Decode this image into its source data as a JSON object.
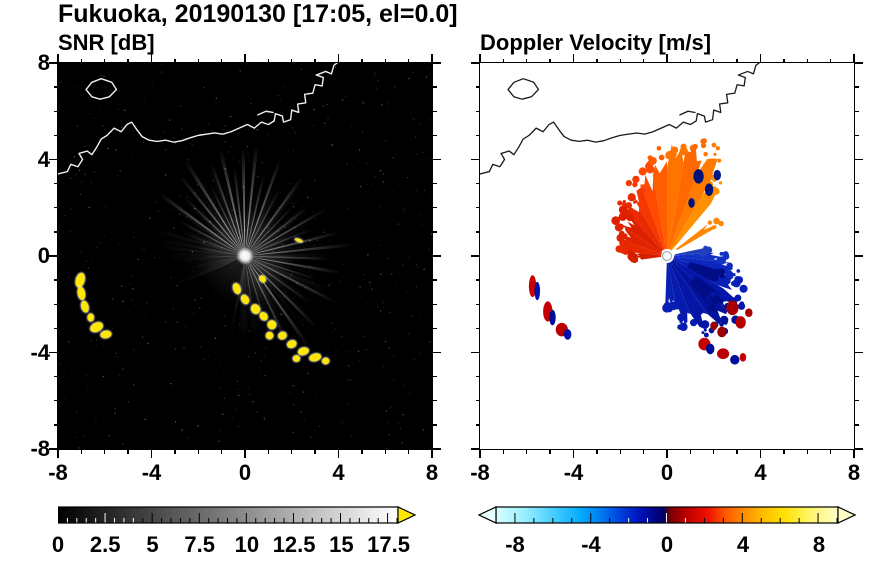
{
  "title": "Fukuoka, 20190130 [17:05, el=0.0]",
  "panels": [
    {
      "title": "SNR [dB]"
    },
    {
      "title": "Doppler Velocity [m/s]"
    }
  ],
  "axes": {
    "xlim": [
      -8,
      8
    ],
    "ylim": [
      -8,
      8
    ],
    "major_ticks": [
      -8,
      -4,
      0,
      4,
      8
    ],
    "major_labels": [
      "-8",
      "-4",
      "0",
      "4",
      "8"
    ],
    "minor_step": 1
  },
  "colorbars": [
    {
      "min": 0,
      "max": 18,
      "major_ticks": [
        0,
        2.5,
        5,
        7.5,
        10,
        12.5,
        15,
        17.5
      ],
      "major_labels": [
        "0",
        "2.5",
        "5",
        "7.5",
        "10",
        "12.5",
        "15",
        "17.5"
      ],
      "minor_step": 0.5,
      "colormap": "grayscale",
      "under_color": "#000000",
      "over_color": "#ffe800",
      "arrow_left": false,
      "arrow_right": true
    },
    {
      "min": -9,
      "max": 9,
      "major_ticks": [
        -8,
        -4,
        0,
        4,
        8
      ],
      "major_labels": [
        "-8",
        "-4",
        "0",
        "4",
        "8"
      ],
      "minor_step": 1,
      "colormap": "doppler",
      "stops": [
        [
          0,
          "#d8ffff"
        ],
        [
          0.08,
          "#99f0ff"
        ],
        [
          0.17,
          "#44ccff"
        ],
        [
          0.25,
          "#00aaff"
        ],
        [
          0.31,
          "#0077ee"
        ],
        [
          0.36,
          "#0044dd"
        ],
        [
          0.42,
          "#0011bb"
        ],
        [
          0.49,
          "#000066"
        ],
        [
          0.51,
          "#7a0000"
        ],
        [
          0.56,
          "#c00000"
        ],
        [
          0.62,
          "#ee1100"
        ],
        [
          0.67,
          "#ff5500"
        ],
        [
          0.72,
          "#ff8800"
        ],
        [
          0.78,
          "#ffbb00"
        ],
        [
          0.84,
          "#ffe000"
        ],
        [
          0.92,
          "#fff56b"
        ],
        [
          1,
          "#ffffc8"
        ]
      ],
      "under_color": "#e6ffff",
      "over_color": "#ffffc8",
      "arrow_left": true,
      "arrow_right": true
    }
  ],
  "coastline": [
    [
      [
        -8,
        3.4
      ],
      [
        -7.6,
        3.5
      ],
      [
        -7.45,
        3.8
      ],
      [
        -7.15,
        3.7
      ],
      [
        -6.95,
        4.0
      ],
      [
        -7.1,
        4.25
      ],
      [
        -6.75,
        4.35
      ],
      [
        -6.55,
        4.2
      ],
      [
        -6.35,
        4.5
      ],
      [
        -6.15,
        4.85
      ],
      [
        -5.9,
        5.0
      ],
      [
        -5.6,
        5.3
      ],
      [
        -5.3,
        5.15
      ],
      [
        -5.05,
        5.45
      ],
      [
        -4.85,
        5.55
      ],
      [
        -4.6,
        5.2
      ],
      [
        -4.4,
        4.95
      ],
      [
        -4.1,
        4.8
      ],
      [
        -3.75,
        4.75
      ],
      [
        -3.4,
        4.8
      ],
      [
        -3.05,
        4.72
      ],
      [
        -2.7,
        4.78
      ],
      [
        -2.35,
        4.9
      ],
      [
        -2.0,
        5.0
      ],
      [
        -1.65,
        5.05
      ],
      [
        -1.3,
        5.1
      ],
      [
        -0.95,
        5.05
      ],
      [
        -0.6,
        5.15
      ],
      [
        -0.25,
        5.3
      ],
      [
        0.1,
        5.45
      ],
      [
        0.4,
        5.3
      ],
      [
        0.7,
        5.55
      ],
      [
        1.0,
        5.45
      ],
      [
        1.25,
        5.6
      ],
      [
        1.3,
        5.9
      ],
      [
        1.6,
        5.8
      ],
      [
        1.65,
        5.55
      ],
      [
        1.95,
        5.65
      ],
      [
        2.0,
        6.05
      ],
      [
        2.3,
        5.95
      ],
      [
        2.25,
        6.3
      ],
      [
        2.6,
        6.35
      ],
      [
        2.55,
        6.7
      ],
      [
        2.9,
        6.75
      ],
      [
        3.0,
        7.1
      ],
      [
        3.3,
        7.05
      ],
      [
        3.35,
        7.4
      ],
      [
        3.05,
        7.5
      ],
      [
        3.45,
        7.65
      ],
      [
        3.7,
        7.55
      ],
      [
        3.8,
        7.9
      ],
      [
        4.0,
        8.05
      ]
    ],
    [
      [
        -6.55,
        6.6
      ],
      [
        -6.8,
        6.9
      ],
      [
        -6.55,
        7.2
      ],
      [
        -6.15,
        7.35
      ],
      [
        -5.7,
        7.2
      ],
      [
        -5.5,
        6.9
      ],
      [
        -5.8,
        6.6
      ],
      [
        -6.2,
        6.5
      ],
      [
        -6.55,
        6.6
      ]
    ],
    [
      [
        0.55,
        5.85
      ],
      [
        0.9,
        6.0
      ],
      [
        1.2,
        5.95
      ]
    ]
  ],
  "chart_data": [
    {
      "type": "heatmap",
      "title": "SNR [dB]",
      "xlabel": "",
      "ylabel": "",
      "xlim": [
        -8,
        8
      ],
      "ylim": [
        -8,
        8
      ],
      "value_range": [
        0,
        17.5
      ],
      "background": "#000000",
      "center": [
        0,
        0
      ],
      "noise": {
        "count": 900,
        "max_alpha": 0.45
      },
      "beam_fan": {
        "a0": -100,
        "a1": 205,
        "step": 2.0,
        "len_min": 1.8,
        "len_max": 4.2,
        "base_intensity": 0.08
      },
      "rays": [
        [
          152,
          3.2,
          0.45
        ],
        [
          144,
          4.6,
          0.6
        ],
        [
          136,
          3.6,
          0.5
        ],
        [
          129,
          4.4,
          0.62
        ],
        [
          122,
          4.8,
          0.68
        ],
        [
          116,
          3.4,
          0.5
        ],
        [
          110,
          4.2,
          0.6
        ],
        [
          103,
          4.7,
          0.7
        ],
        [
          97,
          3.8,
          0.55
        ],
        [
          91,
          4.6,
          0.72
        ],
        [
          84,
          4.8,
          0.65
        ],
        [
          77,
          3.6,
          0.5
        ],
        [
          70,
          4.4,
          0.6
        ],
        [
          63,
          3.2,
          0.45
        ],
        [
          54,
          4.2,
          0.55
        ],
        [
          46,
          2.8,
          0.4
        ],
        [
          38,
          3.4,
          0.45
        ],
        [
          30,
          4.0,
          0.5
        ],
        [
          22,
          3.0,
          0.42
        ],
        [
          14,
          4.2,
          0.55
        ],
        [
          6,
          4.6,
          0.5
        ],
        [
          -2,
          3.6,
          0.45
        ],
        [
          -10,
          4.2,
          0.5
        ],
        [
          -18,
          3.2,
          0.4
        ],
        [
          -27,
          4.4,
          0.5
        ],
        [
          -36,
          3.4,
          0.45
        ],
        [
          -45,
          4.3,
          0.55
        ],
        [
          -55,
          4.7,
          0.6
        ],
        [
          -64,
          4.2,
          0.5
        ],
        [
          -73,
          3.0,
          0.4
        ],
        [
          -82,
          2.2,
          0.3
        ],
        [
          -95,
          1.6,
          0.2
        ],
        [
          160,
          2.8,
          0.35
        ],
        [
          170,
          2.2,
          0.3
        ],
        [
          181,
          1.8,
          0.25
        ],
        [
          192,
          1.4,
          0.2
        ],
        [
          -140,
          1.3,
          0.12
        ],
        [
          -160,
          1.1,
          0.1
        ]
      ],
      "target_color": "#ffe800",
      "targets": [
        [
          -7.05,
          -1.0,
          0.18,
          0.3,
          -15
        ],
        [
          -7.0,
          -1.55,
          0.15,
          0.27,
          10
        ],
        [
          -6.85,
          -2.1,
          0.15,
          0.24,
          15
        ],
        [
          -6.6,
          -2.55,
          0.13,
          0.16,
          0
        ],
        [
          -6.35,
          -2.95,
          0.28,
          0.18,
          25
        ],
        [
          -5.95,
          -3.25,
          0.23,
          0.15,
          10
        ],
        [
          -0.35,
          -1.35,
          0.15,
          0.23,
          20
        ],
        [
          0.0,
          -1.8,
          0.15,
          0.2,
          30
        ],
        [
          0.45,
          -2.2,
          0.18,
          0.2,
          30
        ],
        [
          0.8,
          -2.5,
          0.15,
          0.18,
          35
        ],
        [
          1.15,
          -2.85,
          0.18,
          0.18,
          35
        ],
        [
          1.05,
          -3.3,
          0.15,
          0.15,
          0
        ],
        [
          1.6,
          -3.3,
          0.18,
          0.15,
          20
        ],
        [
          2.0,
          -3.65,
          0.2,
          0.15,
          20
        ],
        [
          2.5,
          -3.95,
          0.23,
          0.15,
          15
        ],
        [
          3.0,
          -4.2,
          0.25,
          0.15,
          15
        ],
        [
          3.45,
          -4.35,
          0.15,
          0.13,
          10
        ],
        [
          2.2,
          -4.25,
          0.15,
          0.13,
          0
        ],
        [
          2.3,
          0.65,
          0.18,
          0.06,
          -20
        ],
        [
          0.75,
          -0.95,
          0.12,
          0.15,
          40
        ]
      ]
    },
    {
      "type": "heatmap",
      "title": "Doppler Velocity [m/s]",
      "xlabel": "",
      "ylabel": "",
      "xlim": [
        -8,
        8
      ],
      "ylim": [
        -8,
        8
      ],
      "value_range": [
        -9,
        9
      ],
      "background": "#ffffff",
      "center": [
        0,
        0
      ],
      "wedges": [
        [
          50,
          60,
          0.3,
          3.4,
          "#ff9100"
        ],
        [
          60,
          70,
          0.3,
          4.3,
          "#ff7b00"
        ],
        [
          70,
          80,
          0.3,
          4.6,
          "#ff6a00"
        ],
        [
          80,
          90,
          0.3,
          4.4,
          "#ff7300"
        ],
        [
          90,
          100,
          0.3,
          3.9,
          "#ff5e00"
        ],
        [
          100,
          110,
          0.3,
          3.4,
          "#ff4a00"
        ],
        [
          110,
          120,
          0.3,
          3.0,
          "#f63800"
        ],
        [
          120,
          132,
          0.3,
          2.6,
          "#ea2a00"
        ],
        [
          132,
          146,
          0.3,
          2.3,
          "#dd2100"
        ],
        [
          146,
          160,
          0.25,
          2.0,
          "#e02300"
        ],
        [
          160,
          174,
          0.25,
          1.8,
          "#e82900"
        ],
        [
          174,
          188,
          0.25,
          1.35,
          "#d32000"
        ],
        [
          30,
          38,
          0.5,
          2.3,
          "#ff8800"
        ],
        [
          -92,
          -80,
          0.3,
          2.1,
          "#0920b4"
        ],
        [
          -80,
          -68,
          0.3,
          2.7,
          "#071bae"
        ],
        [
          -68,
          -55,
          0.3,
          3.2,
          "#0516a6"
        ],
        [
          -55,
          -42,
          0.3,
          3.5,
          "#03129c"
        ],
        [
          -42,
          -30,
          0.3,
          3.3,
          "#0517aa"
        ],
        [
          -30,
          -18,
          0.3,
          3.0,
          "#0a1fb6"
        ],
        [
          -18,
          -6,
          0.3,
          2.6,
          "#0c26c0"
        ],
        [
          -6,
          4,
          0.3,
          2.2,
          "#1030c6"
        ],
        [
          4,
          12,
          0.35,
          1.5,
          "#2040bb"
        ],
        [
          -50,
          -35,
          1.5,
          2.8,
          "#000d86"
        ],
        [
          -30,
          -15,
          1.0,
          2.2,
          "#000d86"
        ]
      ],
      "blobs": [
        [
          1.35,
          3.3,
          0.22,
          0.3,
          "#001377"
        ],
        [
          1.8,
          2.75,
          0.18,
          0.26,
          "#001377"
        ],
        [
          2.15,
          3.35,
          0.16,
          0.22,
          "#001988"
        ],
        [
          1.05,
          2.2,
          0.14,
          0.2,
          "#001377"
        ],
        [
          2.8,
          -2.15,
          0.26,
          0.3,
          "#a80000"
        ],
        [
          3.15,
          -2.75,
          0.22,
          0.26,
          "#b50000"
        ],
        [
          2.35,
          -3.15,
          0.2,
          0.22,
          "#990000"
        ],
        [
          3.5,
          -2.35,
          0.16,
          0.18,
          "#a80000"
        ],
        [
          2.0,
          -2.9,
          0.15,
          0.18,
          "#990000"
        ],
        [
          -5.75,
          -1.25,
          0.16,
          0.45,
          "#c90000"
        ],
        [
          -5.55,
          -1.45,
          0.12,
          0.38,
          "#0011aa"
        ],
        [
          -5.1,
          -2.3,
          0.2,
          0.42,
          "#c90000"
        ],
        [
          -4.9,
          -2.55,
          0.14,
          0.32,
          "#000d99"
        ],
        [
          -4.5,
          -3.05,
          0.26,
          0.28,
          "#b80000"
        ],
        [
          -4.25,
          -3.25,
          0.16,
          0.22,
          "#0011aa"
        ],
        [
          1.6,
          -3.65,
          0.26,
          0.26,
          "#c40000"
        ],
        [
          1.85,
          -3.85,
          0.18,
          0.22,
          "#000d99"
        ],
        [
          2.4,
          -4.05,
          0.26,
          0.22,
          "#b80000"
        ],
        [
          2.9,
          -4.3,
          0.2,
          0.2,
          "#000d99"
        ],
        [
          3.25,
          -4.2,
          0.14,
          0.18,
          "#c40000"
        ]
      ]
    }
  ]
}
